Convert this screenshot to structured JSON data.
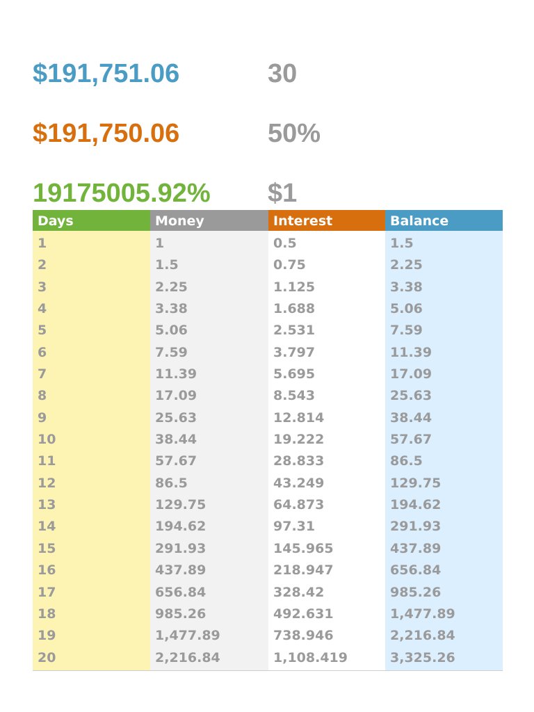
{
  "colors": {
    "blue": "#4a9cc5",
    "orange": "#d76f0e",
    "green": "#72b33b",
    "gray": "#9a9a9a",
    "days_bg": "#fdf3b3",
    "money_bg": "#f2f2f2",
    "interest_bg": "#ffffff",
    "balance_bg": "#dcefff"
  },
  "summary": {
    "final_balance": {
      "label": "",
      "value": "$191,751.06"
    },
    "days": {
      "label": "",
      "value": "30"
    },
    "total_interest": {
      "label": "",
      "value": "$191,750.06"
    },
    "interest_rate": {
      "label": "",
      "value": "50%"
    },
    "percent_gain": {
      "label": "",
      "value": "19175005.92%"
    },
    "starting_amount": {
      "label": "",
      "value": "$1"
    }
  },
  "table": {
    "headers": {
      "days": "Days",
      "money": "Money",
      "interest": "Interest",
      "balance": "Balance"
    },
    "rows": [
      {
        "day": "1",
        "money": "1",
        "interest": "0.5",
        "balance": "1.5"
      },
      {
        "day": "2",
        "money": "1.5",
        "interest": "0.75",
        "balance": "2.25"
      },
      {
        "day": "3",
        "money": "2.25",
        "interest": "1.125",
        "balance": "3.38"
      },
      {
        "day": "4",
        "money": "3.38",
        "interest": "1.688",
        "balance": "5.06"
      },
      {
        "day": "5",
        "money": "5.06",
        "interest": "2.531",
        "balance": "7.59"
      },
      {
        "day": "6",
        "money": "7.59",
        "interest": "3.797",
        "balance": "11.39"
      },
      {
        "day": "7",
        "money": "11.39",
        "interest": "5.695",
        "balance": "17.09"
      },
      {
        "day": "8",
        "money": "17.09",
        "interest": "8.543",
        "balance": "25.63"
      },
      {
        "day": "9",
        "money": "25.63",
        "interest": "12.814",
        "balance": "38.44"
      },
      {
        "day": "10",
        "money": "38.44",
        "interest": "19.222",
        "balance": "57.67"
      },
      {
        "day": "11",
        "money": "57.67",
        "interest": "28.833",
        "balance": "86.5"
      },
      {
        "day": "12",
        "money": "86.5",
        "interest": "43.249",
        "balance": "129.75"
      },
      {
        "day": "13",
        "money": "129.75",
        "interest": "64.873",
        "balance": "194.62"
      },
      {
        "day": "14",
        "money": "194.62",
        "interest": "97.31",
        "balance": "291.93"
      },
      {
        "day": "15",
        "money": "291.93",
        "interest": "145.965",
        "balance": "437.89"
      },
      {
        "day": "16",
        "money": "437.89",
        "interest": "218.947",
        "balance": "656.84"
      },
      {
        "day": "17",
        "money": "656.84",
        "interest": "328.42",
        "balance": "985.26"
      },
      {
        "day": "18",
        "money": "985.26",
        "interest": "492.631",
        "balance": "1,477.89"
      },
      {
        "day": "19",
        "money": "1,477.89",
        "interest": "738.946",
        "balance": "2,216.84"
      },
      {
        "day": "20",
        "money": "2,216.84",
        "interest": "1,108.419",
        "balance": "3,325.26"
      }
    ]
  }
}
